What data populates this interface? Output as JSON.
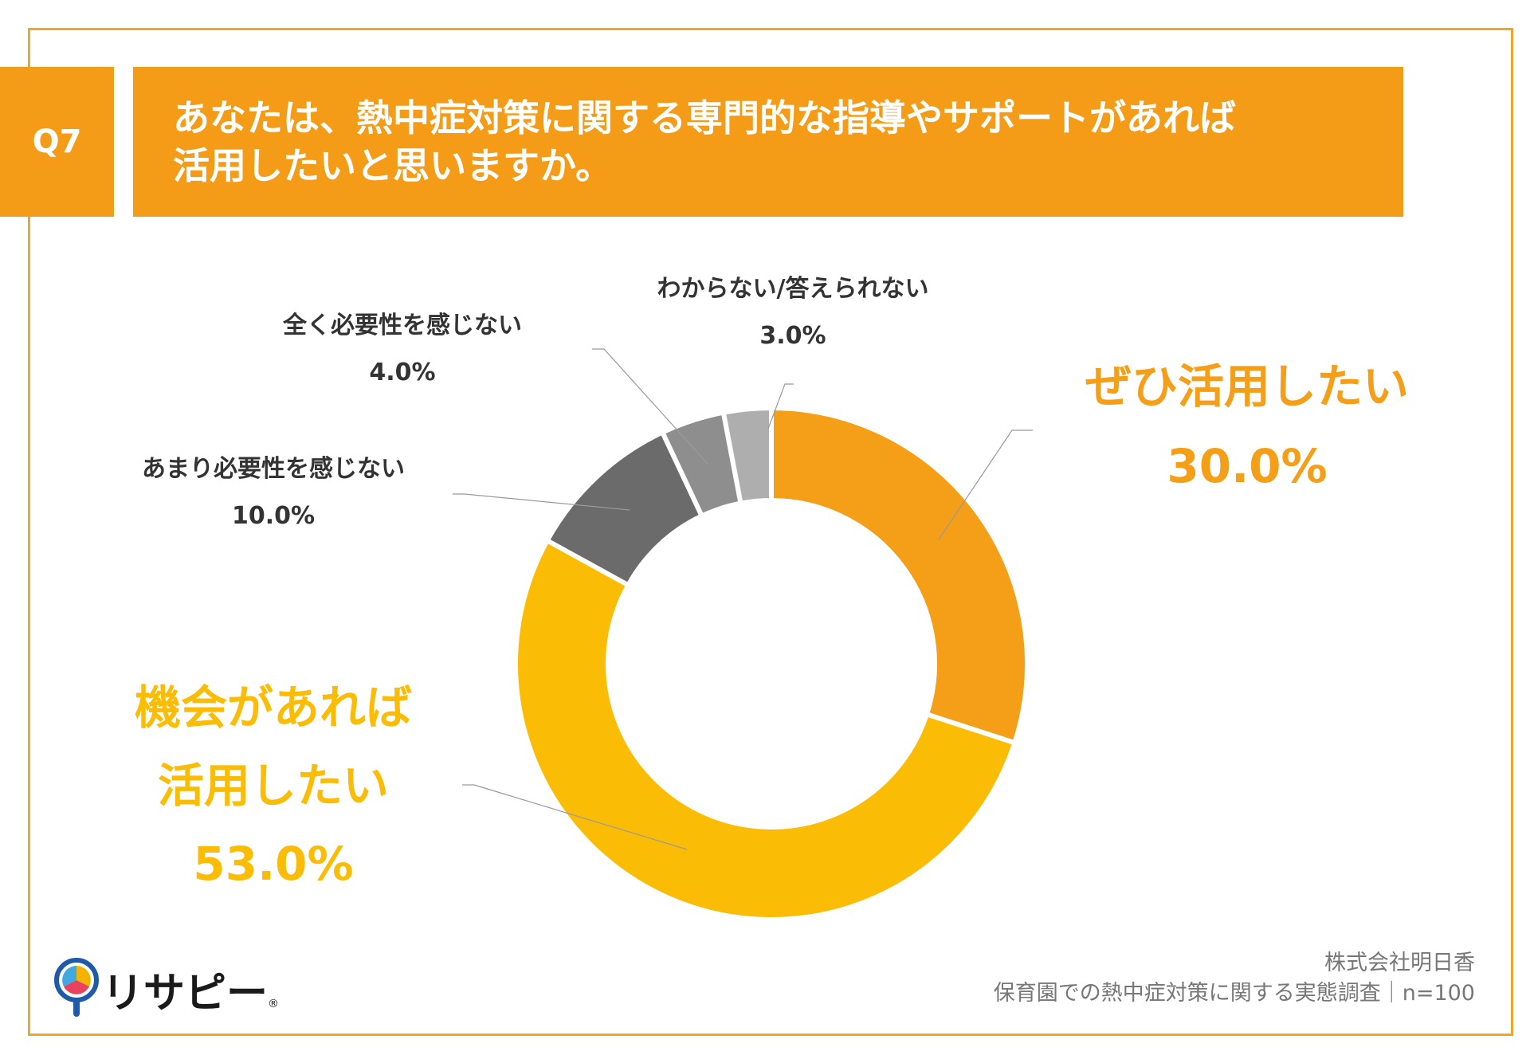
{
  "question": {
    "badge": "Q7",
    "line1": "あなたは、熱中症対策に関する専門的な指導やサポートがあれば",
    "line2": "活用したいと思いますか。"
  },
  "chart_data": {
    "type": "pie",
    "categories": [
      "ぜひ活用したい",
      "機会があれば活用したい",
      "あまり必要性を感じない",
      "全く必要性を感じない",
      "わからない/答えられない"
    ],
    "values": [
      30.0,
      53.0,
      10.0,
      4.0,
      3.0
    ],
    "value_labels": [
      "30.0%",
      "53.0%",
      "10.0%",
      "4.0%",
      "3.0%"
    ],
    "colors": [
      "#F59E17",
      "#FBBC05",
      "#6B6B6B",
      "#8E8E8E",
      "#AEAEAE"
    ],
    "donut": true
  },
  "labels": {
    "s0_name": "ぜひ活用したい",
    "s0_value": "30.0%",
    "s1_line1": "機会があれば",
    "s1_line2": "活用したい",
    "s1_value": "53.0%",
    "s2_name": "あまり必要性を感じない",
    "s2_value": "10.0%",
    "s3_name": "全く必要性を感じない",
    "s3_value": "4.0%",
    "s4_name": "わからない/答えられない",
    "s4_value": "3.0%"
  },
  "footer": {
    "company": "株式会社明日香",
    "survey": "保育園での熱中症対策に関する実態調査｜n=100"
  },
  "logo": {
    "text": "リサピー",
    "mark": "®"
  }
}
